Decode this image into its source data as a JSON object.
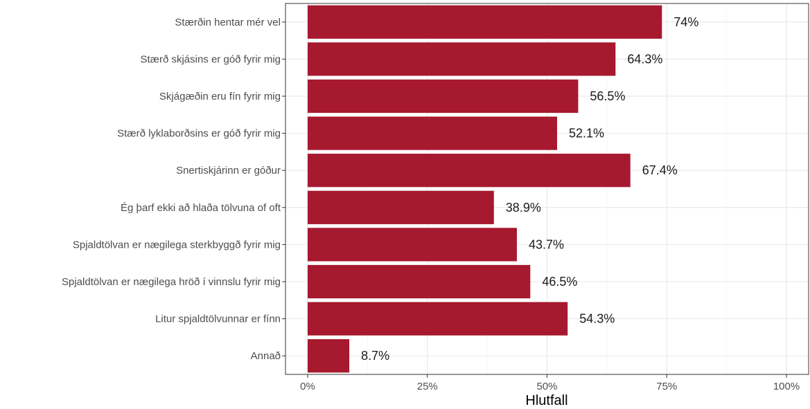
{
  "chart_data": {
    "type": "bar",
    "orientation": "horizontal",
    "categories": [
      "Stærðin hentar mér vel",
      "Stærð skjásins er góð fyrir mig",
      "Skjágæðin eru fín fyrir mig",
      "Stærð lyklaborðsins er góð fyrir mig",
      "Snertiskjárinn er góður",
      "Ég þarf ekki að hlaða tölvuna of oft",
      "Spjaldtölvan er nægilega sterkbyggð fyrir mig",
      "Spjaldtölvan er nægilega hröð í vinnslu fyrir mig",
      "Litur spjaldtölvunnar er fínn",
      "Annað"
    ],
    "values": [
      74,
      64.3,
      56.5,
      52.1,
      67.4,
      38.9,
      43.7,
      46.5,
      54.3,
      8.7
    ],
    "data_labels": [
      "74%",
      "64.3%",
      "56.5%",
      "52.1%",
      "67.4%",
      "38.9%",
      "43.7%",
      "46.5%",
      "54.3%",
      "8.7%"
    ],
    "xlabel": "Hlutfall",
    "ylabel": "",
    "xlim": [
      0,
      100
    ],
    "x_ticks": [
      0,
      25,
      50,
      75,
      100
    ],
    "x_tick_labels": [
      "0%",
      "25%",
      "50%",
      "75%",
      "100%"
    ],
    "bar_color": "#a6192e",
    "grid": true,
    "legend": "none"
  }
}
